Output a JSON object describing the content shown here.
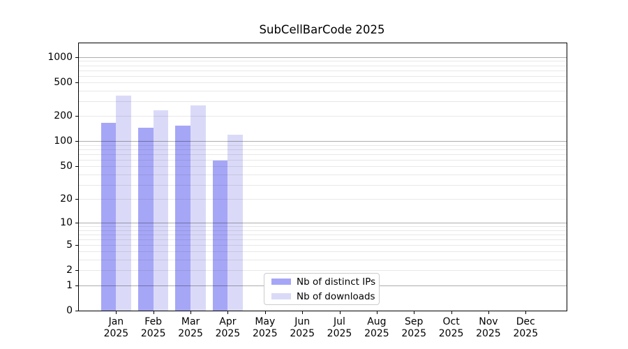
{
  "chart_data": {
    "type": "bar",
    "title": "SubCellBarCode 2025",
    "categories": [
      [
        "Jan",
        "2025"
      ],
      [
        "Feb",
        "2025"
      ],
      [
        "Mar",
        "2025"
      ],
      [
        "Apr",
        "2025"
      ],
      [
        "May",
        "2025"
      ],
      [
        "Jun",
        "2025"
      ],
      [
        "Jul",
        "2025"
      ],
      [
        "Aug",
        "2025"
      ],
      [
        "Sep",
        "2025"
      ],
      [
        "Oct",
        "2025"
      ],
      [
        "Nov",
        "2025"
      ],
      [
        "Dec",
        "2025"
      ]
    ],
    "series": [
      {
        "name": "Nb of distinct IPs",
        "color": "#a6a6f7",
        "values": [
          165,
          145,
          154,
          59,
          0,
          0,
          0,
          0,
          0,
          0,
          0,
          0
        ]
      },
      {
        "name": "Nb of downloads",
        "color": "#dadaf8",
        "values": [
          352,
          235,
          267,
          120,
          0,
          0,
          0,
          0,
          0,
          0,
          0,
          0
        ]
      }
    ],
    "yticks": [
      0,
      1,
      2,
      5,
      10,
      20,
      50,
      100,
      200,
      500,
      1000
    ],
    "scale": "log1p",
    "ylim": [
      0,
      1460
    ],
    "grid": "on",
    "legend_position": "bottom-center",
    "colors": {
      "major_grid": "#b0b0b0",
      "minor_grid": "#e8e8e8",
      "spine": "#000000",
      "text": "#000000",
      "background": "#ffffff"
    }
  }
}
